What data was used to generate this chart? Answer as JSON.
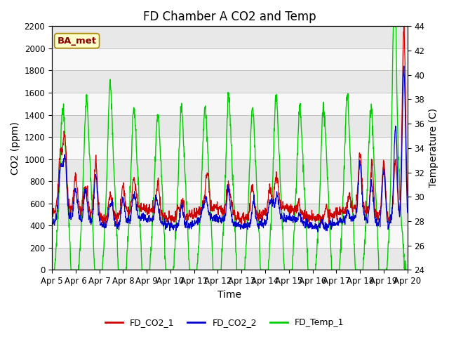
{
  "title": "FD Chamber A CO2 and Temp",
  "xlabel": "Time",
  "ylabel_left": "CO2 (ppm)",
  "ylabel_right": "Temperature (C)",
  "ylim_left": [
    0,
    2200
  ],
  "ylim_right": [
    24,
    44
  ],
  "yticks_left": [
    0,
    200,
    400,
    600,
    800,
    1000,
    1200,
    1400,
    1600,
    1800,
    2000,
    2200
  ],
  "yticks_right": [
    24,
    26,
    28,
    30,
    32,
    34,
    36,
    38,
    40,
    42,
    44
  ],
  "xtick_labels": [
    "Apr 5",
    "Apr 6",
    "Apr 7",
    "Apr 8",
    "Apr 9",
    "Apr 10",
    "Apr 11",
    "Apr 12",
    "Apr 13",
    "Apr 14",
    "Apr 15",
    "Apr 16",
    "Apr 17",
    "Apr 18",
    "Apr 19",
    "Apr 20"
  ],
  "color_co2_1": "#cc0000",
  "color_co2_2": "#0000cc",
  "color_temp": "#00cc00",
  "annotation_text": "BA_met",
  "annotation_bg": "#ffffcc",
  "annotation_border": "#aa8800",
  "band_colors": [
    "#e8e8e8",
    "#f8f8f8"
  ],
  "grid_color": "#bbbbbb",
  "title_fontsize": 12,
  "axis_fontsize": 10,
  "tick_fontsize": 8.5,
  "legend_fontsize": 9
}
